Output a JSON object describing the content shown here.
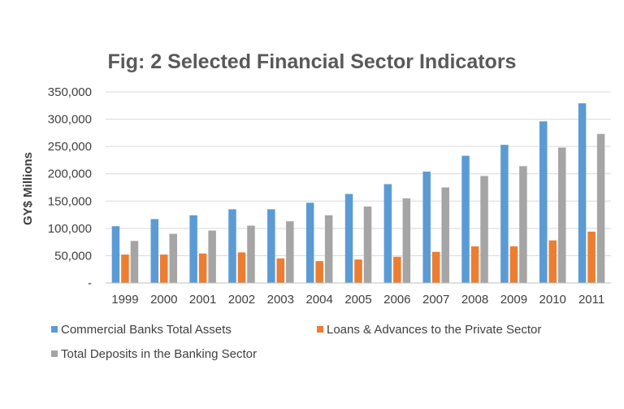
{
  "chart_data": {
    "type": "bar",
    "title": "Fig: 2 Selected Financial Sector Indicators",
    "xlabel": "",
    "ylabel": "GY$ Millions",
    "ylim": [
      0,
      350000
    ],
    "yticks": [
      {
        "value": 0,
        "label": "-"
      },
      {
        "value": 50000,
        "label": "50,000"
      },
      {
        "value": 100000,
        "label": "100,000"
      },
      {
        "value": 150000,
        "label": "150,000"
      },
      {
        "value": 200000,
        "label": "200,000"
      },
      {
        "value": 250000,
        "label": "250,000"
      },
      {
        "value": 300000,
        "label": "300,000"
      },
      {
        "value": 350000,
        "label": "350,000"
      }
    ],
    "grid": true,
    "legend_position": "bottom",
    "categories": [
      "1999",
      "2000",
      "2001",
      "2002",
      "2003",
      "2004",
      "2005",
      "2006",
      "2007",
      "2008",
      "2009",
      "2010",
      "2011"
    ],
    "series": [
      {
        "name": "Commercial Banks Total Assets",
        "color": "#5B9BD5",
        "values": [
          104000,
          117000,
          124000,
          135000,
          135000,
          147000,
          163000,
          181000,
          204000,
          233000,
          253000,
          296000,
          329000
        ]
      },
      {
        "name": "Loans & Advances to the Private Sector",
        "color": "#ED7D31",
        "values": [
          52000,
          52000,
          54000,
          56000,
          45000,
          40000,
          43000,
          48000,
          57000,
          67000,
          67000,
          78000,
          94000
        ]
      },
      {
        "name": "Total Deposits in the Banking Sector",
        "color": "#A5A5A5",
        "values": [
          77000,
          90000,
          96000,
          105000,
          113000,
          124000,
          140000,
          155000,
          175000,
          196000,
          214000,
          248000,
          273000
        ]
      }
    ]
  }
}
